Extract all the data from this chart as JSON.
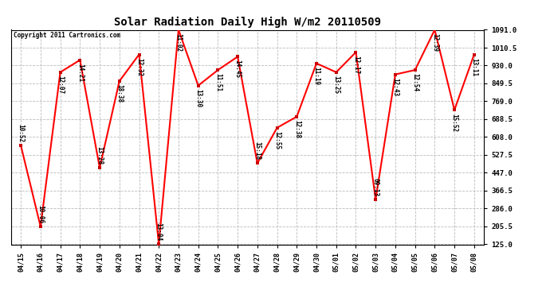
{
  "title": "Solar Radiation Daily High W/m2 20110509",
  "copyright": "Copyright 2011 Cartronics.com",
  "dates": [
    "04/15",
    "04/16",
    "04/17",
    "04/18",
    "04/19",
    "04/20",
    "04/21",
    "04/22",
    "04/23",
    "04/24",
    "04/25",
    "04/26",
    "04/27",
    "04/28",
    "04/29",
    "04/30",
    "05/01",
    "05/02",
    "05/03",
    "05/04",
    "05/05",
    "05/06",
    "05/07",
    "05/08"
  ],
  "values": [
    570,
    205,
    900,
    955,
    470,
    860,
    980,
    127,
    1091,
    840,
    910,
    970,
    490,
    650,
    700,
    940,
    900,
    990,
    327,
    890,
    910,
    1091,
    730,
    980
  ],
  "labels": [
    "10:52",
    "10:06",
    "12:07",
    "14:21",
    "13:28",
    "18:38",
    "12:32",
    "13:04",
    "11:02",
    "13:30",
    "11:51",
    "14:45",
    "15:18",
    "12:55",
    "12:38",
    "11:19",
    "13:25",
    "12:17",
    "09:13",
    "12:43",
    "12:54",
    "12:39",
    "15:52",
    "13:11"
  ],
  "line_color": "#ff0000",
  "marker_color": "#cc0000",
  "bg_color": "#ffffff",
  "grid_color": "#bbbbbb",
  "ylim": [
    125.0,
    1091.0
  ],
  "yticks": [
    125.0,
    205.5,
    286.0,
    366.5,
    447.0,
    527.5,
    608.0,
    688.5,
    769.0,
    849.5,
    930.0,
    1010.5,
    1091.0
  ],
  "figwidth": 6.9,
  "figheight": 3.75,
  "dpi": 100
}
